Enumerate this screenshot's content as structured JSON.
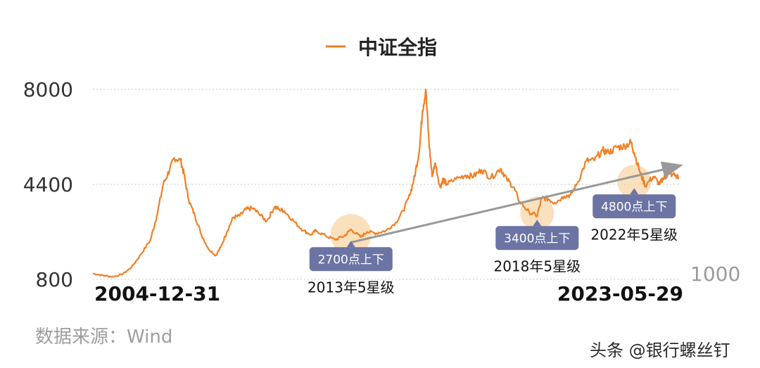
{
  "chart_data": {
    "type": "line",
    "title": "",
    "xlabel": "",
    "ylabel": "",
    "legend": {
      "position": "top-center",
      "entries": [
        "中证全指"
      ]
    },
    "grid": "horizontal-dotted",
    "y_ticks": [
      "8000",
      "4400",
      "800"
    ],
    "y_ticks_right": [
      "1000"
    ],
    "x_ticks": [
      "2004-12-31",
      "2023-05-29"
    ],
    "ylim": [
      800,
      8000
    ],
    "series": [
      {
        "name": "中证全指",
        "color": "#f08024",
        "x": [
          2004.99,
          2005.3,
          2005.6,
          2005.9,
          2006.2,
          2006.5,
          2006.8,
          2007.0,
          2007.2,
          2007.4,
          2007.55,
          2007.75,
          2007.85,
          2008.0,
          2008.2,
          2008.4,
          2008.6,
          2008.85,
          2009.0,
          2009.2,
          2009.4,
          2009.6,
          2009.8,
          2010.0,
          2010.2,
          2010.45,
          2010.7,
          2010.85,
          2011.0,
          2011.3,
          2011.6,
          2011.85,
          2012.0,
          2012.3,
          2012.6,
          2012.9,
          2013.1,
          2013.4,
          2013.6,
          2013.9,
          2014.2,
          2014.5,
          2014.75,
          2014.95,
          2015.1,
          2015.25,
          2015.35,
          2015.45,
          2015.55,
          2015.65,
          2015.75,
          2015.9,
          2016.0,
          2016.1,
          2016.4,
          2016.7,
          2016.95,
          2017.2,
          2017.5,
          2017.8,
          2018.0,
          2018.2,
          2018.4,
          2018.7,
          2018.95,
          2019.1,
          2019.3,
          2019.5,
          2019.8,
          2020.0,
          2020.2,
          2020.5,
          2020.75,
          2021.0,
          2021.2,
          2021.45,
          2021.7,
          2021.9,
          2022.0,
          2022.2,
          2022.35,
          2022.6,
          2022.8,
          2022.9,
          2023.0,
          2023.2,
          2023.41
        ],
        "y": [
          1020,
          950,
          900,
          980,
          1250,
          1750,
          2300,
          3200,
          4400,
          4950,
          5400,
          5300,
          4800,
          3800,
          3200,
          2500,
          2000,
          1700,
          2000,
          2600,
          3150,
          3200,
          3450,
          3500,
          3300,
          3000,
          3550,
          3450,
          3400,
          3000,
          2650,
          2500,
          2650,
          2450,
          2300,
          2450,
          2700,
          2400,
          2600,
          2550,
          2650,
          2950,
          3400,
          4000,
          4700,
          5700,
          7200,
          8000,
          6000,
          4700,
          5200,
          4300,
          4600,
          4400,
          4600,
          4750,
          4700,
          4950,
          4650,
          5000,
          4600,
          4300,
          3750,
          3350,
          3200,
          3900,
          3850,
          3700,
          3950,
          4000,
          4400,
          5300,
          5300,
          5700,
          5600,
          5800,
          5850,
          6000,
          5600,
          4800,
          4350,
          4700,
          4400,
          4600,
          4700,
          4800,
          4650
        ]
      }
    ],
    "trend_line": {
      "from": [
        2013.1,
        2200
      ],
      "to": [
        2023.41,
        5100
      ],
      "color": "#999999"
    },
    "callouts": [
      {
        "label": "2700点上下",
        "x": 2013.1,
        "y": 2500,
        "rating": "2013年5星级"
      },
      {
        "label": "3400点上下",
        "x": 2018.95,
        "y": 3300,
        "rating": "2018年5星级"
      },
      {
        "label": "4800点上下",
        "x": 2022.0,
        "y": 4500,
        "rating": "2022年5星级"
      }
    ]
  },
  "footnote": "数据来源：Wind",
  "watermark": "头条 @银行螺丝钉"
}
